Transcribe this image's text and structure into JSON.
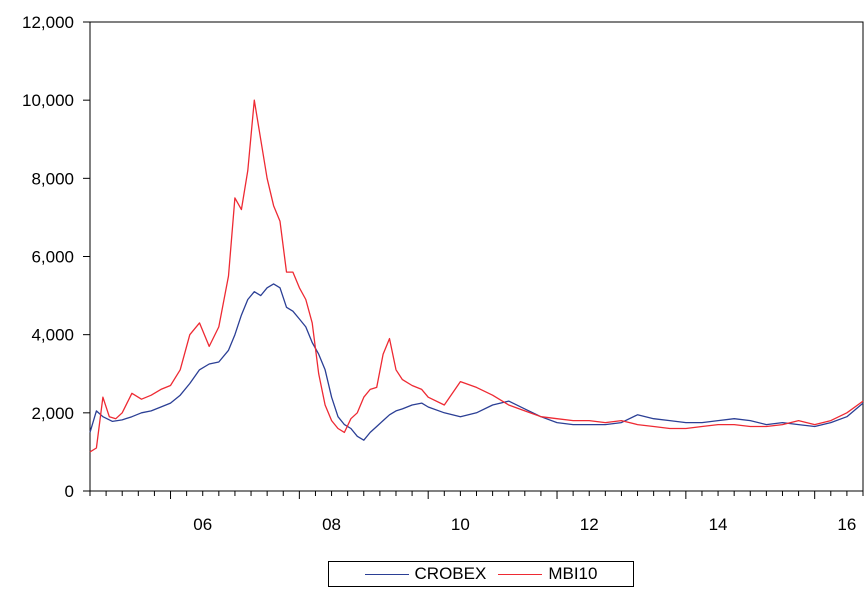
{
  "chart_data": {
    "type": "line",
    "title": "",
    "xlabel": "",
    "ylabel": "",
    "xlim": [
      2004.75,
      2016.75
    ],
    "ylim": [
      0,
      12000
    ],
    "y_ticks": [
      0,
      2000,
      4000,
      6000,
      8000,
      10000,
      12000
    ],
    "y_tick_labels": [
      "0",
      "2,000",
      "4,000",
      "6,000",
      "8,000",
      "10,000",
      "12,000"
    ],
    "x_ticks": [
      2006,
      2008,
      2010,
      2012,
      2014,
      2016
    ],
    "x_tick_labels": [
      "06",
      "08",
      "10",
      "12",
      "14",
      "16"
    ],
    "grid": false,
    "legend_position": "bottom-center",
    "series": [
      {
        "name": "CROBEX",
        "color": "#2b3f95",
        "x": [
          2004.75,
          2004.85,
          2004.95,
          2005.1,
          2005.25,
          2005.4,
          2005.55,
          2005.7,
          2005.85,
          2006.0,
          2006.15,
          2006.3,
          2006.45,
          2006.6,
          2006.75,
          2006.9,
          2007.0,
          2007.1,
          2007.2,
          2007.3,
          2007.4,
          2007.5,
          2007.6,
          2007.7,
          2007.8,
          2007.9,
          2008.0,
          2008.1,
          2008.2,
          2008.3,
          2008.4,
          2008.5,
          2008.6,
          2008.7,
          2008.8,
          2008.9,
          2009.0,
          2009.1,
          2009.2,
          2009.3,
          2009.4,
          2009.5,
          2009.6,
          2009.75,
          2009.9,
          2010.0,
          2010.25,
          2010.5,
          2010.75,
          2011.0,
          2011.25,
          2011.5,
          2011.75,
          2012.0,
          2012.25,
          2012.5,
          2012.75,
          2013.0,
          2013.25,
          2013.5,
          2013.75,
          2014.0,
          2014.25,
          2014.5,
          2014.75,
          2015.0,
          2015.25,
          2015.5,
          2015.75,
          2016.0,
          2016.25,
          2016.5,
          2016.75
        ],
        "values": [
          1500,
          2050,
          1900,
          1780,
          1820,
          1900,
          2000,
          2050,
          2150,
          2250,
          2450,
          2750,
          3100,
          3250,
          3300,
          3600,
          4000,
          4500,
          4900,
          5100,
          5000,
          5200,
          5300,
          5200,
          4700,
          4600,
          4400,
          4200,
          3800,
          3500,
          3100,
          2400,
          1900,
          1700,
          1600,
          1400,
          1300,
          1500,
          1650,
          1800,
          1950,
          2050,
          2100,
          2200,
          2250,
          2150,
          2000,
          1900,
          2000,
          2200,
          2300,
          2100,
          1900,
          1750,
          1700,
          1700,
          1700,
          1750,
          1950,
          1850,
          1800,
          1750,
          1750,
          1800,
          1850,
          1800,
          1700,
          1750,
          1700,
          1650,
          1750,
          1900,
          2250
        ]
      },
      {
        "name": "MBI10",
        "color": "#ee2a33",
        "x": [
          2004.75,
          2004.85,
          2004.95,
          2005.05,
          2005.15,
          2005.25,
          2005.4,
          2005.55,
          2005.7,
          2005.85,
          2006.0,
          2006.15,
          2006.3,
          2006.45,
          2006.6,
          2006.75,
          2006.9,
          2007.0,
          2007.1,
          2007.2,
          2007.3,
          2007.4,
          2007.5,
          2007.6,
          2007.7,
          2007.8,
          2007.9,
          2008.0,
          2008.1,
          2008.2,
          2008.3,
          2008.4,
          2008.5,
          2008.6,
          2008.7,
          2008.8,
          2008.9,
          2009.0,
          2009.1,
          2009.2,
          2009.3,
          2009.4,
          2009.5,
          2009.6,
          2009.75,
          2009.9,
          2010.0,
          2010.25,
          2010.5,
          2010.75,
          2011.0,
          2011.25,
          2011.5,
          2011.75,
          2012.0,
          2012.25,
          2012.5,
          2012.75,
          2013.0,
          2013.25,
          2013.5,
          2013.75,
          2014.0,
          2014.25,
          2014.5,
          2014.75,
          2015.0,
          2015.25,
          2015.5,
          2015.75,
          2016.0,
          2016.25,
          2016.5,
          2016.75
        ],
        "values": [
          1000,
          1100,
          2400,
          1900,
          1850,
          2000,
          2500,
          2350,
          2450,
          2600,
          2700,
          3100,
          4000,
          4300,
          3700,
          4200,
          5500,
          7500,
          7200,
          8200,
          10000,
          9000,
          8000,
          7300,
          6900,
          5600,
          5600,
          5200,
          4900,
          4300,
          3000,
          2200,
          1800,
          1600,
          1500,
          1850,
          2000,
          2400,
          2600,
          2650,
          3500,
          3900,
          3100,
          2850,
          2700,
          2600,
          2400,
          2200,
          2800,
          2650,
          2450,
          2200,
          2050,
          1900,
          1850,
          1800,
          1800,
          1750,
          1800,
          1700,
          1650,
          1600,
          1600,
          1650,
          1700,
          1700,
          1650,
          1650,
          1700,
          1800,
          1700,
          1800,
          2000,
          2300
        ]
      }
    ]
  },
  "legend": {
    "items": [
      {
        "label": "CROBEX",
        "color": "#2b3f95"
      },
      {
        "label": "MBI10",
        "color": "#ee2a33"
      }
    ]
  }
}
